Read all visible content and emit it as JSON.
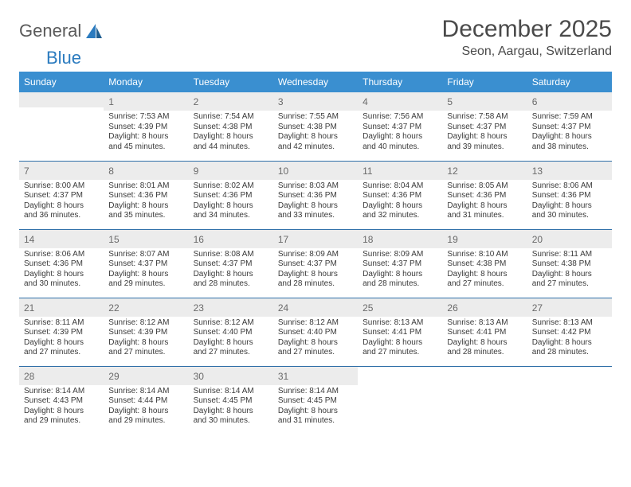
{
  "brand": {
    "part1": "General",
    "part2": "Blue"
  },
  "title": "December 2025",
  "location": "Seon, Aargau, Switzerland",
  "colors": {
    "header_bg": "#3a8fd0",
    "header_text": "#ffffff",
    "row_border": "#2f6fa8",
    "daynum_bg": "#ececec",
    "text": "#3a3a3a",
    "brand_blue": "#2b7bbf",
    "page_bg": "#ffffff"
  },
  "typography": {
    "title_fontsize": 30,
    "location_fontsize": 16,
    "header_fontsize": 12,
    "daynum_fontsize": 12,
    "body_fontsize": 10,
    "font_family": "Arial, Helvetica, sans-serif"
  },
  "weekday_headers": [
    "Sunday",
    "Monday",
    "Tuesday",
    "Wednesday",
    "Thursday",
    "Friday",
    "Saturday"
  ],
  "weeks": [
    [
      null,
      {
        "n": "1",
        "sunrise": "Sunrise: 7:53 AM",
        "sunset": "Sunset: 4:39 PM",
        "d1": "Daylight: 8 hours",
        "d2": "and 45 minutes."
      },
      {
        "n": "2",
        "sunrise": "Sunrise: 7:54 AM",
        "sunset": "Sunset: 4:38 PM",
        "d1": "Daylight: 8 hours",
        "d2": "and 44 minutes."
      },
      {
        "n": "3",
        "sunrise": "Sunrise: 7:55 AM",
        "sunset": "Sunset: 4:38 PM",
        "d1": "Daylight: 8 hours",
        "d2": "and 42 minutes."
      },
      {
        "n": "4",
        "sunrise": "Sunrise: 7:56 AM",
        "sunset": "Sunset: 4:37 PM",
        "d1": "Daylight: 8 hours",
        "d2": "and 40 minutes."
      },
      {
        "n": "5",
        "sunrise": "Sunrise: 7:58 AM",
        "sunset": "Sunset: 4:37 PM",
        "d1": "Daylight: 8 hours",
        "d2": "and 39 minutes."
      },
      {
        "n": "6",
        "sunrise": "Sunrise: 7:59 AM",
        "sunset": "Sunset: 4:37 PM",
        "d1": "Daylight: 8 hours",
        "d2": "and 38 minutes."
      }
    ],
    [
      {
        "n": "7",
        "sunrise": "Sunrise: 8:00 AM",
        "sunset": "Sunset: 4:37 PM",
        "d1": "Daylight: 8 hours",
        "d2": "and 36 minutes."
      },
      {
        "n": "8",
        "sunrise": "Sunrise: 8:01 AM",
        "sunset": "Sunset: 4:36 PM",
        "d1": "Daylight: 8 hours",
        "d2": "and 35 minutes."
      },
      {
        "n": "9",
        "sunrise": "Sunrise: 8:02 AM",
        "sunset": "Sunset: 4:36 PM",
        "d1": "Daylight: 8 hours",
        "d2": "and 34 minutes."
      },
      {
        "n": "10",
        "sunrise": "Sunrise: 8:03 AM",
        "sunset": "Sunset: 4:36 PM",
        "d1": "Daylight: 8 hours",
        "d2": "and 33 minutes."
      },
      {
        "n": "11",
        "sunrise": "Sunrise: 8:04 AM",
        "sunset": "Sunset: 4:36 PM",
        "d1": "Daylight: 8 hours",
        "d2": "and 32 minutes."
      },
      {
        "n": "12",
        "sunrise": "Sunrise: 8:05 AM",
        "sunset": "Sunset: 4:36 PM",
        "d1": "Daylight: 8 hours",
        "d2": "and 31 minutes."
      },
      {
        "n": "13",
        "sunrise": "Sunrise: 8:06 AM",
        "sunset": "Sunset: 4:36 PM",
        "d1": "Daylight: 8 hours",
        "d2": "and 30 minutes."
      }
    ],
    [
      {
        "n": "14",
        "sunrise": "Sunrise: 8:06 AM",
        "sunset": "Sunset: 4:36 PM",
        "d1": "Daylight: 8 hours",
        "d2": "and 30 minutes."
      },
      {
        "n": "15",
        "sunrise": "Sunrise: 8:07 AM",
        "sunset": "Sunset: 4:37 PM",
        "d1": "Daylight: 8 hours",
        "d2": "and 29 minutes."
      },
      {
        "n": "16",
        "sunrise": "Sunrise: 8:08 AM",
        "sunset": "Sunset: 4:37 PM",
        "d1": "Daylight: 8 hours",
        "d2": "and 28 minutes."
      },
      {
        "n": "17",
        "sunrise": "Sunrise: 8:09 AM",
        "sunset": "Sunset: 4:37 PM",
        "d1": "Daylight: 8 hours",
        "d2": "and 28 minutes."
      },
      {
        "n": "18",
        "sunrise": "Sunrise: 8:09 AM",
        "sunset": "Sunset: 4:37 PM",
        "d1": "Daylight: 8 hours",
        "d2": "and 28 minutes."
      },
      {
        "n": "19",
        "sunrise": "Sunrise: 8:10 AM",
        "sunset": "Sunset: 4:38 PM",
        "d1": "Daylight: 8 hours",
        "d2": "and 27 minutes."
      },
      {
        "n": "20",
        "sunrise": "Sunrise: 8:11 AM",
        "sunset": "Sunset: 4:38 PM",
        "d1": "Daylight: 8 hours",
        "d2": "and 27 minutes."
      }
    ],
    [
      {
        "n": "21",
        "sunrise": "Sunrise: 8:11 AM",
        "sunset": "Sunset: 4:39 PM",
        "d1": "Daylight: 8 hours",
        "d2": "and 27 minutes."
      },
      {
        "n": "22",
        "sunrise": "Sunrise: 8:12 AM",
        "sunset": "Sunset: 4:39 PM",
        "d1": "Daylight: 8 hours",
        "d2": "and 27 minutes."
      },
      {
        "n": "23",
        "sunrise": "Sunrise: 8:12 AM",
        "sunset": "Sunset: 4:40 PM",
        "d1": "Daylight: 8 hours",
        "d2": "and 27 minutes."
      },
      {
        "n": "24",
        "sunrise": "Sunrise: 8:12 AM",
        "sunset": "Sunset: 4:40 PM",
        "d1": "Daylight: 8 hours",
        "d2": "and 27 minutes."
      },
      {
        "n": "25",
        "sunrise": "Sunrise: 8:13 AM",
        "sunset": "Sunset: 4:41 PM",
        "d1": "Daylight: 8 hours",
        "d2": "and 27 minutes."
      },
      {
        "n": "26",
        "sunrise": "Sunrise: 8:13 AM",
        "sunset": "Sunset: 4:41 PM",
        "d1": "Daylight: 8 hours",
        "d2": "and 28 minutes."
      },
      {
        "n": "27",
        "sunrise": "Sunrise: 8:13 AM",
        "sunset": "Sunset: 4:42 PM",
        "d1": "Daylight: 8 hours",
        "d2": "and 28 minutes."
      }
    ],
    [
      {
        "n": "28",
        "sunrise": "Sunrise: 8:14 AM",
        "sunset": "Sunset: 4:43 PM",
        "d1": "Daylight: 8 hours",
        "d2": "and 29 minutes."
      },
      {
        "n": "29",
        "sunrise": "Sunrise: 8:14 AM",
        "sunset": "Sunset: 4:44 PM",
        "d1": "Daylight: 8 hours",
        "d2": "and 29 minutes."
      },
      {
        "n": "30",
        "sunrise": "Sunrise: 8:14 AM",
        "sunset": "Sunset: 4:45 PM",
        "d1": "Daylight: 8 hours",
        "d2": "and 30 minutes."
      },
      {
        "n": "31",
        "sunrise": "Sunrise: 8:14 AM",
        "sunset": "Sunset: 4:45 PM",
        "d1": "Daylight: 8 hours",
        "d2": "and 31 minutes."
      },
      null,
      null,
      null
    ]
  ]
}
